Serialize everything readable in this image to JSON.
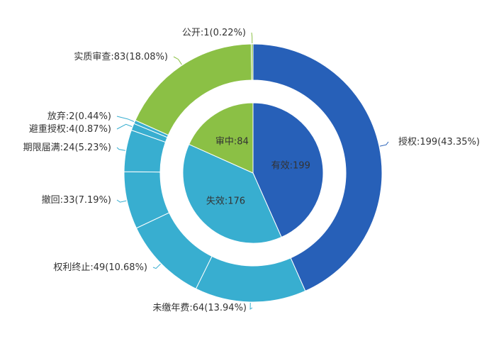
{
  "chart_data": {
    "type": "pie",
    "variant": "nested-donut",
    "center_gap": "white-ring",
    "inner": {
      "slices": [
        {
          "name": "有效",
          "value": 199,
          "label": "有效:199",
          "color": "#2760b8"
        },
        {
          "name": "失效",
          "value": 176,
          "label": "失效:176",
          "color": "#38aed0"
        },
        {
          "name": "审中",
          "value": 84,
          "label": "审中:84",
          "color": "#8bc045"
        }
      ]
    },
    "outer": {
      "slices": [
        {
          "name": "授权",
          "value": 199,
          "label": "授权:199(43.35%)",
          "color": "#2760b8"
        },
        {
          "name": "未缴年费",
          "value": 64,
          "label": "未缴年费:64(13.94%)",
          "color": "#38aed0"
        },
        {
          "name": "权利终止",
          "value": 49,
          "label": "权利终止:49(10.68%)",
          "color": "#38aed0"
        },
        {
          "name": "撤回",
          "value": 33,
          "label": "撤回:33(7.19%)",
          "color": "#38aed0"
        },
        {
          "name": "期限届满",
          "value": 24,
          "label": "期限届满:24(5.23%)",
          "color": "#38aed0"
        },
        {
          "name": "避重授权",
          "value": 4,
          "label": "避重授权:4(0.87%)",
          "color": "#38aed0"
        },
        {
          "name": "放弃",
          "value": 2,
          "label": "放弃:2(0.44%)",
          "color": "#38aed0"
        },
        {
          "name": "实质审查",
          "value": 83,
          "label": "实质审查:83(18.08%)",
          "color": "#8bc045"
        },
        {
          "name": "公开",
          "value": 1,
          "label": "公开:1(0.22%)",
          "color": "#8bc045"
        }
      ]
    }
  }
}
